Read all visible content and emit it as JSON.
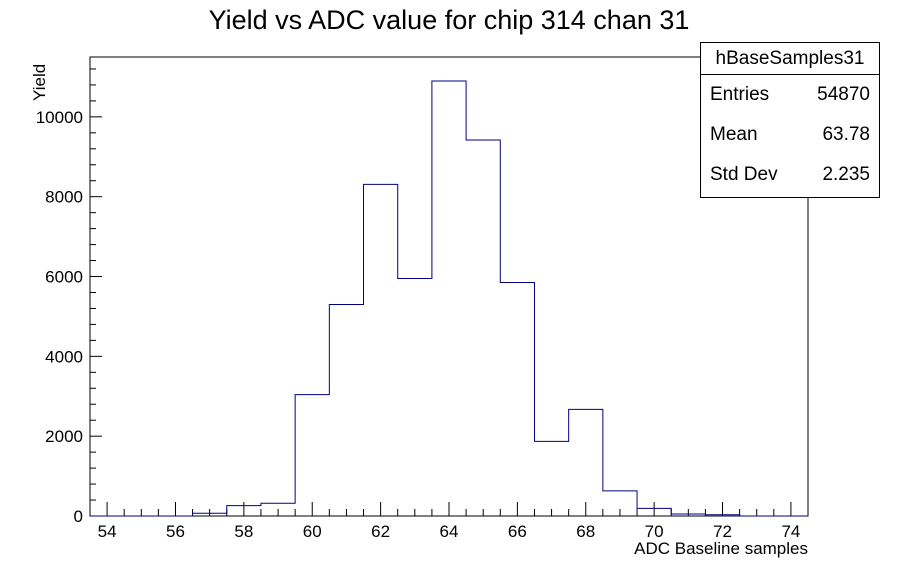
{
  "chart_data": {
    "type": "bar",
    "title": "Yield vs ADC value for chip 314 chan 31",
    "xlabel": "ADC Baseline samples",
    "ylabel": "Yield",
    "xlim": [
      53.5,
      74.5
    ],
    "ylim": [
      0,
      11500
    ],
    "bin_width": 1,
    "bin_centers": [
      54,
      55,
      56,
      57,
      58,
      59,
      60,
      61,
      62,
      63,
      64,
      65,
      66,
      67,
      68,
      69,
      70,
      71,
      72,
      73,
      74
    ],
    "values": [
      0,
      0,
      0,
      70,
      260,
      320,
      3040,
      5300,
      8310,
      5950,
      10900,
      9420,
      5850,
      1870,
      2670,
      630,
      190,
      50,
      30,
      0,
      0
    ],
    "x_tick_labels": [
      "54",
      "56",
      "58",
      "60",
      "62",
      "64",
      "66",
      "68",
      "70",
      "72",
      "74"
    ],
    "y_tick_labels": [
      "0",
      "2000",
      "4000",
      "6000",
      "8000",
      "10000"
    ],
    "line_color": "#000080",
    "grid": false
  },
  "stats": {
    "name": "hBaseSamples31",
    "rows": [
      {
        "label": "Entries",
        "value": "54870"
      },
      {
        "label": "Mean",
        "value": "63.78"
      },
      {
        "label": "Std Dev",
        "value": "2.235"
      }
    ]
  }
}
